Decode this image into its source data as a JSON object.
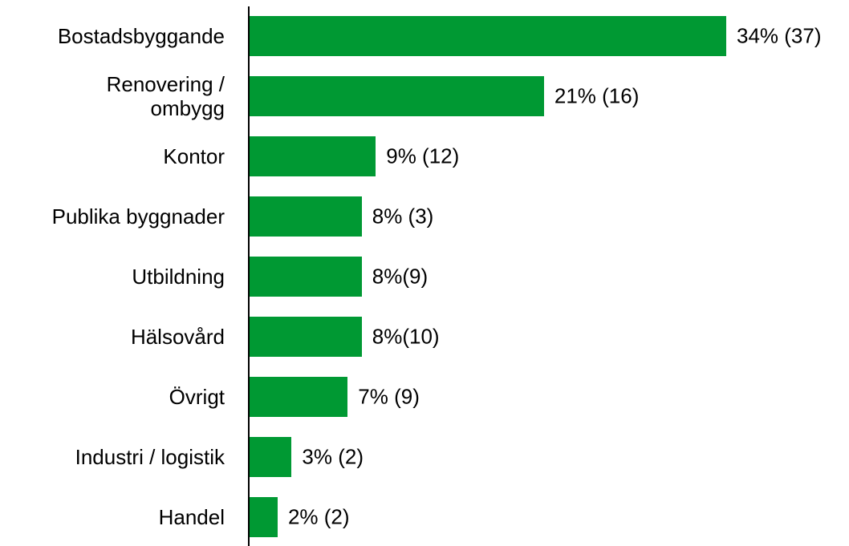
{
  "chart_data": {
    "type": "bar",
    "orientation": "horizontal",
    "color": "#009933",
    "categories": [
      "Bostadsbyggande",
      "Renovering /\nombygg",
      "Kontor",
      "Publika byggnader",
      "Utbildning",
      "Hälsovård",
      "Övrigt",
      "Industri / logistik",
      "Handel"
    ],
    "values": [
      34,
      21,
      9,
      8,
      8,
      8,
      7,
      3,
      2
    ],
    "value_labels": [
      "34% (37)",
      "21% (16)",
      "9% (12)",
      "8% (3)",
      "8%(9)",
      "8%(10)",
      "7% (9)",
      "3% (2)",
      "2% (2)"
    ]
  }
}
